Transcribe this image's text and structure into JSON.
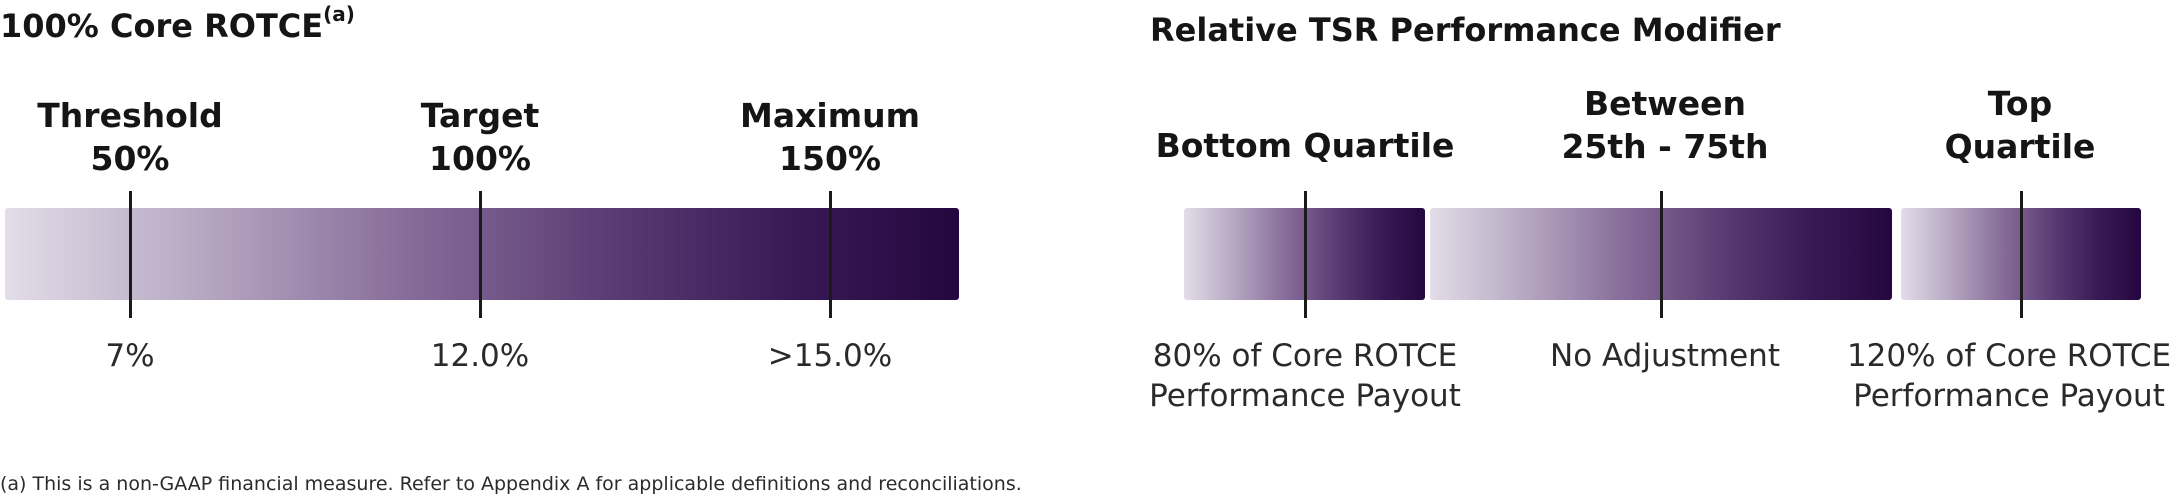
{
  "left": {
    "title": "100% Core ROTCE",
    "title_sup": "(a)",
    "levels": [
      {
        "name": "Threshold",
        "pct": "50%",
        "value": "7%"
      },
      {
        "name": "Target",
        "pct": "100%",
        "value": "12.0%"
      },
      {
        "name": "Maximum",
        "pct": "150%",
        "value": ">15.0%"
      }
    ]
  },
  "right": {
    "title": "Relative TSR Performance Modifier",
    "segments": [
      {
        "head_line1": "Bottom Quartile",
        "head_line2": "",
        "desc_line1": "80% of Core ROTCE",
        "desc_line2": "Performance Payout"
      },
      {
        "head_line1": "Between",
        "head_line2": "25th - 75th",
        "desc_line1": "No Adjustment",
        "desc_line2": ""
      },
      {
        "head_line1": "Top",
        "head_line2": "Quartile",
        "desc_line1": "120% of Core ROTCE",
        "desc_line2": "Performance Payout"
      }
    ]
  },
  "footnote": "(a) This is a non-GAAP financial measure. Refer to Appendix A for applicable definitions and reconciliations.",
  "colors": {
    "bar_start": "#e2dde8",
    "bar_end": "#25073f",
    "marker": "#1a1a1a"
  }
}
